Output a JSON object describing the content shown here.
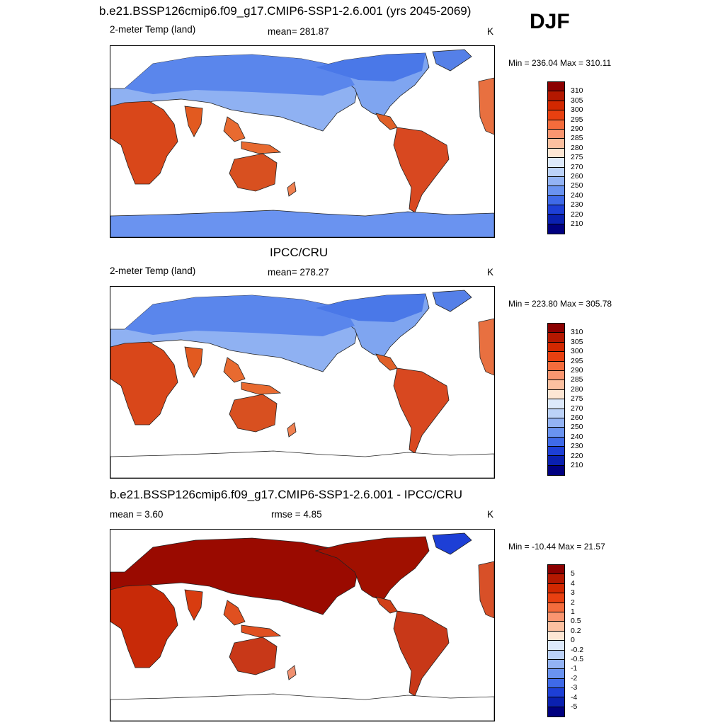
{
  "season": "DJF",
  "panels": [
    {
      "title": "b.e21.BSSP126cmip6.f09_g17.CMIP6-SSP1-2.6.001 (yrs 2045-2069)",
      "left_label": "2-meter Temp (land)",
      "center_label": "mean= 281.87",
      "units": "K",
      "minmax": "Min = 236.04 Max = 310.11",
      "colorbar": {
        "labels": [
          "310",
          "305",
          "300",
          "295",
          "290",
          "285",
          "280",
          "275",
          "270",
          "260",
          "250",
          "240",
          "230",
          "220",
          "210"
        ],
        "colors": [
          "#8b0000",
          "#b41800",
          "#d22800",
          "#e84010",
          "#f46c3c",
          "#fa9670",
          "#fcc0a0",
          "#fde6d4",
          "#dde9fb",
          "#bcd2f8",
          "#93b3f4",
          "#6a93f0",
          "#3f6ae8",
          "#1d3fd6",
          "#0a20b0",
          "#000080"
        ]
      }
    },
    {
      "title": "IPCC/CRU",
      "left_label": "2-meter Temp (land)",
      "center_label": "mean= 278.27",
      "units": "K",
      "minmax": "Min = 223.80 Max = 305.78",
      "colorbar": {
        "labels": [
          "310",
          "305",
          "300",
          "295",
          "290",
          "285",
          "280",
          "275",
          "270",
          "260",
          "250",
          "240",
          "230",
          "220",
          "210"
        ],
        "colors": [
          "#8b0000",
          "#b41800",
          "#d22800",
          "#e84010",
          "#f46c3c",
          "#fa9670",
          "#fcc0a0",
          "#fde6d4",
          "#dde9fb",
          "#bcd2f8",
          "#93b3f4",
          "#6a93f0",
          "#3f6ae8",
          "#1d3fd6",
          "#0a20b0",
          "#000080"
        ]
      }
    },
    {
      "title": "b.e21.BSSP126cmip6.f09_g17.CMIP6-SSP1-2.6.001 - IPCC/CRU",
      "left_label": "mean =   3.60",
      "center_label": "rmse =   4.85",
      "units": "K",
      "minmax": "Min = -10.44 Max =  21.57",
      "colorbar": {
        "labels": [
          "5",
          "4",
          "3",
          "2",
          "1",
          "0.5",
          "0.2",
          "0",
          "-0.2",
          "-0.5",
          "-1",
          "-2",
          "-3",
          "-4",
          "-5"
        ],
        "colors": [
          "#8b0000",
          "#b41800",
          "#d22800",
          "#e84010",
          "#f46c3c",
          "#fa9670",
          "#fcc0a0",
          "#fde6d4",
          "#dde9fb",
          "#bcd2f8",
          "#93b3f4",
          "#6a93f0",
          "#3f6ae8",
          "#1d3fd6",
          "#0a20b0",
          "#000080"
        ]
      }
    }
  ]
}
